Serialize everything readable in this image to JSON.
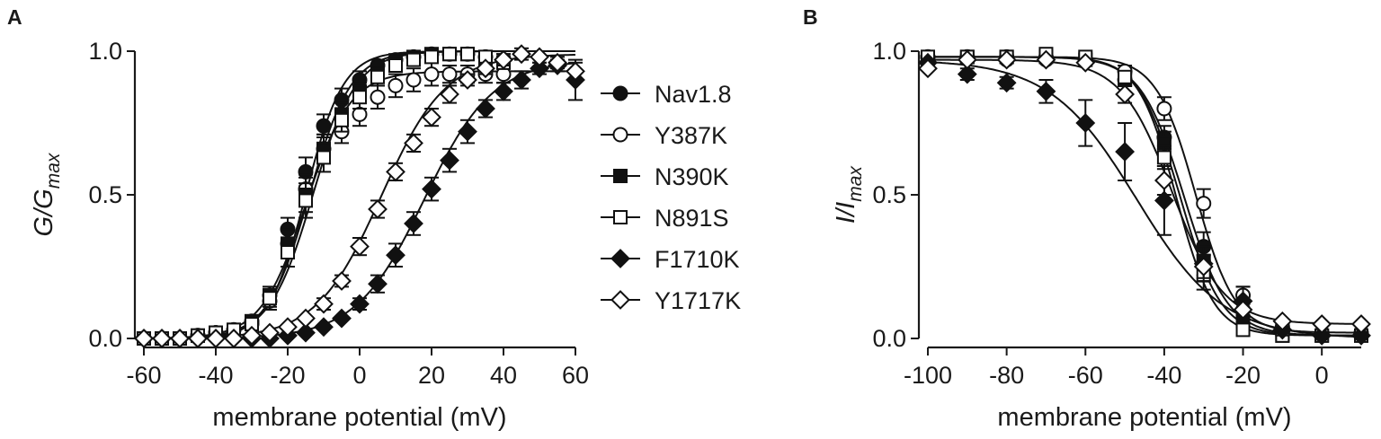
{
  "figure": {
    "panel_a_letter": "A",
    "panel_b_letter": "B"
  },
  "chart_data": [
    {
      "type": "scatter",
      "panel": "A",
      "xlabel": "membrane potential (mV)",
      "ylabel_main": "G/G",
      "ylabel_sub": "max",
      "xlim": [
        -60,
        60
      ],
      "ylim": [
        0,
        1
      ],
      "xticks": [
        "-60",
        "-40",
        "-20",
        "0",
        "20",
        "40",
        "60"
      ],
      "xtick_values": [
        -60,
        -40,
        -20,
        0,
        20,
        40,
        60
      ],
      "yticks": [
        "0.0",
        "0.5",
        "1.0"
      ],
      "ytick_values": [
        0,
        0.5,
        1.0
      ],
      "legend_position": "right",
      "series": [
        {
          "name": "Nav1.8",
          "marker": "circle",
          "filled": true,
          "x": [
            -60,
            -55,
            -50,
            -45,
            -40,
            -35,
            -30,
            -25,
            -20,
            -15,
            -10,
            -5,
            0,
            5,
            10,
            15,
            20,
            25,
            30,
            35,
            40
          ],
          "y": [
            0.0,
            0.0,
            0.0,
            0.01,
            0.02,
            0.03,
            0.06,
            0.15,
            0.38,
            0.58,
            0.74,
            0.83,
            0.9,
            0.95,
            0.97,
            0.98,
            0.99,
            0.99,
            0.99,
            0.98,
            0.97
          ],
          "err": [
            0,
            0,
            0,
            0,
            0,
            0.01,
            0.01,
            0.03,
            0.04,
            0.05,
            0.04,
            0.04,
            0.03,
            0.02,
            0.02,
            0.01,
            0.01,
            0.01,
            0.01,
            0.01,
            0.02
          ],
          "fit_v_half": -15,
          "fit_k": 5.2,
          "fit_top": 1.0
        },
        {
          "name": "Y387K",
          "marker": "circle",
          "filled": false,
          "x": [
            -60,
            -55,
            -50,
            -45,
            -40,
            -35,
            -30,
            -25,
            -20,
            -15,
            -10,
            -5,
            0,
            5,
            10,
            15,
            20,
            25,
            30,
            35,
            40
          ],
          "y": [
            0.0,
            0.0,
            0.0,
            0.01,
            0.02,
            0.03,
            0.05,
            0.13,
            0.33,
            0.52,
            0.66,
            0.72,
            0.78,
            0.84,
            0.88,
            0.9,
            0.92,
            0.92,
            0.92,
            0.92,
            0.92
          ],
          "err": [
            0,
            0,
            0,
            0,
            0,
            0.01,
            0.01,
            0.03,
            0.05,
            0.05,
            0.05,
            0.04,
            0.04,
            0.04,
            0.04,
            0.04,
            0.04,
            0.03,
            0.03,
            0.03,
            0.03
          ],
          "fit_v_half": -15,
          "fit_k": 6.2,
          "fit_top": 0.93
        },
        {
          "name": "N390K",
          "marker": "square",
          "filled": true,
          "x": [
            -60,
            -55,
            -50,
            -45,
            -40,
            -35,
            -30,
            -25,
            -20,
            -15,
            -10,
            -5,
            0,
            5,
            10,
            15,
            20,
            25,
            30,
            35,
            40
          ],
          "y": [
            0.0,
            0.0,
            0.0,
            0.01,
            0.02,
            0.03,
            0.06,
            0.15,
            0.33,
            0.5,
            0.66,
            0.78,
            0.86,
            0.92,
            0.96,
            0.98,
            0.99,
            0.99,
            0.99,
            0.97,
            0.96
          ],
          "err": [
            0,
            0,
            0,
            0,
            0,
            0.01,
            0.01,
            0.03,
            0.05,
            0.06,
            0.05,
            0.04,
            0.03,
            0.03,
            0.02,
            0.02,
            0.01,
            0.01,
            0.01,
            0.02,
            0.02
          ],
          "fit_v_half": -14,
          "fit_k": 5.8,
          "fit_top": 1.0
        },
        {
          "name": "N891S",
          "marker": "square",
          "filled": false,
          "x": [
            -60,
            -55,
            -50,
            -45,
            -40,
            -35,
            -30,
            -25,
            -20,
            -15,
            -10,
            -5,
            0,
            5,
            10,
            15,
            20,
            25,
            30,
            35,
            40
          ],
          "y": [
            0.0,
            0.0,
            0.0,
            0.01,
            0.02,
            0.03,
            0.05,
            0.14,
            0.3,
            0.48,
            0.63,
            0.76,
            0.84,
            0.91,
            0.95,
            0.97,
            0.98,
            0.99,
            0.99,
            0.98,
            0.96
          ],
          "err": [
            0,
            0,
            0,
            0,
            0,
            0.01,
            0.01,
            0.03,
            0.05,
            0.06,
            0.05,
            0.04,
            0.04,
            0.03,
            0.02,
            0.02,
            0.02,
            0.01,
            0.01,
            0.02,
            0.02
          ],
          "fit_v_half": -13,
          "fit_k": 6.0,
          "fit_top": 1.0
        },
        {
          "name": "F1710K",
          "marker": "diamond",
          "filled": true,
          "x": [
            -60,
            -55,
            -50,
            -45,
            -40,
            -35,
            -30,
            -25,
            -20,
            -15,
            -10,
            -5,
            0,
            5,
            10,
            15,
            20,
            25,
            30,
            35,
            40,
            45,
            50,
            55,
            60
          ],
          "y": [
            0.0,
            0.0,
            0.0,
            0.0,
            0.0,
            0.0,
            0.0,
            0.0,
            0.01,
            0.02,
            0.04,
            0.07,
            0.12,
            0.19,
            0.29,
            0.4,
            0.52,
            0.62,
            0.72,
            0.8,
            0.86,
            0.9,
            0.94,
            0.95,
            0.9
          ],
          "err": [
            0,
            0,
            0,
            0,
            0,
            0,
            0,
            0,
            0,
            0.01,
            0.01,
            0.01,
            0.02,
            0.03,
            0.04,
            0.04,
            0.04,
            0.04,
            0.04,
            0.03,
            0.03,
            0.03,
            0.02,
            0.02,
            0.07
          ],
          "fit_v_half": 18,
          "fit_k": 9.5,
          "fit_top": 0.97
        },
        {
          "name": "Y1717K",
          "marker": "diamond",
          "filled": false,
          "x": [
            -60,
            -55,
            -50,
            -45,
            -40,
            -35,
            -30,
            -25,
            -20,
            -15,
            -10,
            -5,
            0,
            5,
            10,
            15,
            20,
            25,
            30,
            35,
            40,
            45,
            50,
            55,
            60
          ],
          "y": [
            0.0,
            0.0,
            0.0,
            0.0,
            0.0,
            0.0,
            0.01,
            0.02,
            0.04,
            0.07,
            0.12,
            0.2,
            0.32,
            0.45,
            0.58,
            0.68,
            0.77,
            0.85,
            0.9,
            0.94,
            0.97,
            0.99,
            0.98,
            0.96,
            0.93
          ],
          "err": [
            0,
            0,
            0,
            0,
            0,
            0,
            0,
            0.01,
            0.01,
            0.01,
            0.02,
            0.02,
            0.03,
            0.03,
            0.03,
            0.03,
            0.03,
            0.03,
            0.02,
            0.02,
            0.02,
            0.02,
            0.02,
            0.02,
            0.03
          ],
          "fit_v_half": 6,
          "fit_k": 9.0,
          "fit_top": 0.99
        }
      ]
    },
    {
      "type": "scatter",
      "panel": "B",
      "xlabel": "membrane potential (mV)",
      "ylabel_main": "I/I",
      "ylabel_sub": "max",
      "xlim": [
        -100,
        10
      ],
      "ylim": [
        0,
        1
      ],
      "xticks": [
        "-100",
        "-80",
        "-60",
        "-40",
        "-20",
        "0"
      ],
      "xtick_values": [
        -100,
        -80,
        -60,
        -40,
        -20,
        0
      ],
      "yticks": [
        "0.0",
        "0.5",
        "1.0"
      ],
      "ytick_values": [
        0,
        0.5,
        1.0
      ],
      "series": [
        {
          "name": "Nav1.8",
          "marker": "circle",
          "filled": true,
          "x": [
            -100,
            -90,
            -80,
            -70,
            -60,
            -50,
            -40,
            -30,
            -20,
            -10,
            0,
            10
          ],
          "y": [
            0.98,
            0.98,
            0.98,
            0.98,
            0.97,
            0.9,
            0.7,
            0.32,
            0.1,
            0.02,
            0.01,
            0.01
          ],
          "err": [
            0.01,
            0.01,
            0.01,
            0.01,
            0.01,
            0.02,
            0.04,
            0.05,
            0.03,
            0.01,
            0.01,
            0.01
          ],
          "fit_v_half": -35,
          "fit_k": 5.5,
          "fit_top": 0.98,
          "fit_bottom": 0.01
        },
        {
          "name": "Y387K",
          "marker": "circle",
          "filled": false,
          "x": [
            -100,
            -90,
            -80,
            -70,
            -60,
            -50,
            -40,
            -30,
            -20,
            -10,
            0,
            10
          ],
          "y": [
            0.98,
            0.98,
            0.97,
            0.97,
            0.97,
            0.93,
            0.8,
            0.47,
            0.15,
            0.04,
            0.02,
            0.02
          ],
          "err": [
            0.01,
            0.01,
            0.01,
            0.01,
            0.01,
            0.02,
            0.04,
            0.05,
            0.03,
            0.01,
            0.01,
            0.01
          ],
          "fit_v_half": -32,
          "fit_k": 5.0,
          "fit_top": 0.98,
          "fit_bottom": 0.02
        },
        {
          "name": "N390K",
          "marker": "square",
          "filled": true,
          "x": [
            -100,
            -90,
            -80,
            -70,
            -60,
            -50,
            -40,
            -30,
            -20,
            -10,
            0,
            10
          ],
          "y": [
            0.98,
            0.98,
            0.98,
            0.98,
            0.97,
            0.9,
            0.68,
            0.27,
            0.06,
            0.01,
            0.01,
            0.01
          ],
          "err": [
            0.01,
            0.01,
            0.01,
            0.01,
            0.01,
            0.02,
            0.04,
            0.05,
            0.02,
            0.01,
            0.01,
            0.01
          ],
          "fit_v_half": -36,
          "fit_k": 5.2,
          "fit_top": 0.98,
          "fit_bottom": 0.01
        },
        {
          "name": "N891S",
          "marker": "square",
          "filled": false,
          "x": [
            -100,
            -90,
            -80,
            -70,
            -60,
            -50,
            -40,
            -30,
            -20,
            -10,
            0,
            10
          ],
          "y": [
            0.98,
            0.98,
            0.98,
            0.99,
            0.98,
            0.91,
            0.63,
            0.22,
            0.03,
            0.01,
            0.01,
            0.01
          ],
          "err": [
            0.01,
            0.01,
            0.01,
            0.01,
            0.01,
            0.02,
            0.04,
            0.05,
            0.01,
            0.01,
            0.01,
            0.01
          ],
          "fit_v_half": -37,
          "fit_k": 4.8,
          "fit_top": 0.98,
          "fit_bottom": 0.01
        },
        {
          "name": "F1710K",
          "marker": "diamond",
          "filled": true,
          "x": [
            -100,
            -90,
            -80,
            -70,
            -60,
            -50,
            -40,
            -30,
            -20,
            -10,
            0,
            10
          ],
          "y": [
            0.96,
            0.92,
            0.89,
            0.86,
            0.75,
            0.65,
            0.48,
            0.26,
            0.13,
            0.03,
            0.01,
            0.01
          ],
          "err": [
            0.01,
            0.02,
            0.02,
            0.04,
            0.08,
            0.1,
            0.12,
            0.06,
            0.05,
            0.02,
            0.01,
            0.01
          ],
          "fit_v_half": -47,
          "fit_k": 11,
          "fit_top": 0.97,
          "fit_bottom": 0.0
        },
        {
          "name": "Y1717K",
          "marker": "diamond",
          "filled": false,
          "x": [
            -100,
            -90,
            -80,
            -70,
            -60,
            -50,
            -40,
            -30,
            -20,
            -10,
            0,
            10
          ],
          "y": [
            0.94,
            0.97,
            0.97,
            0.97,
            0.96,
            0.85,
            0.55,
            0.25,
            0.1,
            0.06,
            0.05,
            0.05
          ],
          "err": [
            0.01,
            0.01,
            0.01,
            0.01,
            0.01,
            0.03,
            0.05,
            0.04,
            0.02,
            0.01,
            0.01,
            0.01
          ],
          "fit_v_half": -38,
          "fit_k": 6.5,
          "fit_top": 0.97,
          "fit_bottom": 0.05
        }
      ]
    }
  ]
}
